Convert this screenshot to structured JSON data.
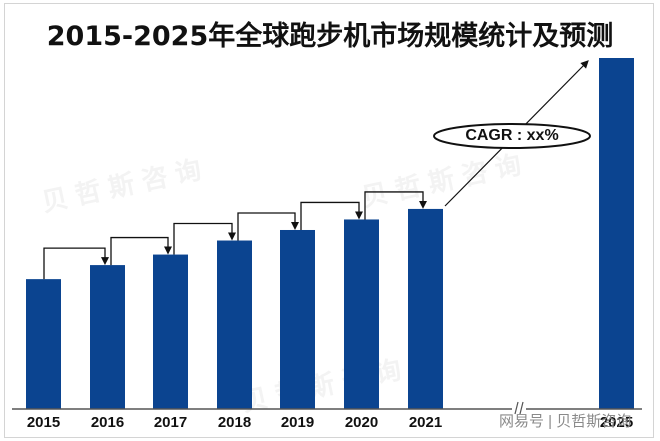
{
  "title": "2015-2025年全球跑步机市场规模统计及预测",
  "watermarks": [
    "贝哲斯咨询",
    "贝哲斯咨询",
    "贝哲斯咨询"
  ],
  "footer_watermark": "网易号 | 贝哲斯咨询",
  "annotation": {
    "cagr_label": "CAGR : xx%"
  },
  "colors": {
    "bar": "#0B4490",
    "axis": "#555555",
    "arrow": "#111111"
  },
  "chart_data": {
    "type": "bar",
    "title": "2015-2025年全球跑步机市场规模统计及预测",
    "xlabel": "",
    "ylabel": "",
    "categories": [
      "2015",
      "2016",
      "2017",
      "2018",
      "2019",
      "2020",
      "2021",
      "2025"
    ],
    "values": [
      37,
      41,
      44,
      48,
      51,
      54,
      57,
      100
    ],
    "values_note": "relative bar heights (2025 = 100); no numeric labels shown",
    "ylim": [
      0,
      100
    ],
    "grid": false,
    "legend": null,
    "axis_break_between": [
      "2021",
      "2025"
    ],
    "annotations": [
      "CAGR : xx%"
    ],
    "year_over_year_arrows": true
  }
}
